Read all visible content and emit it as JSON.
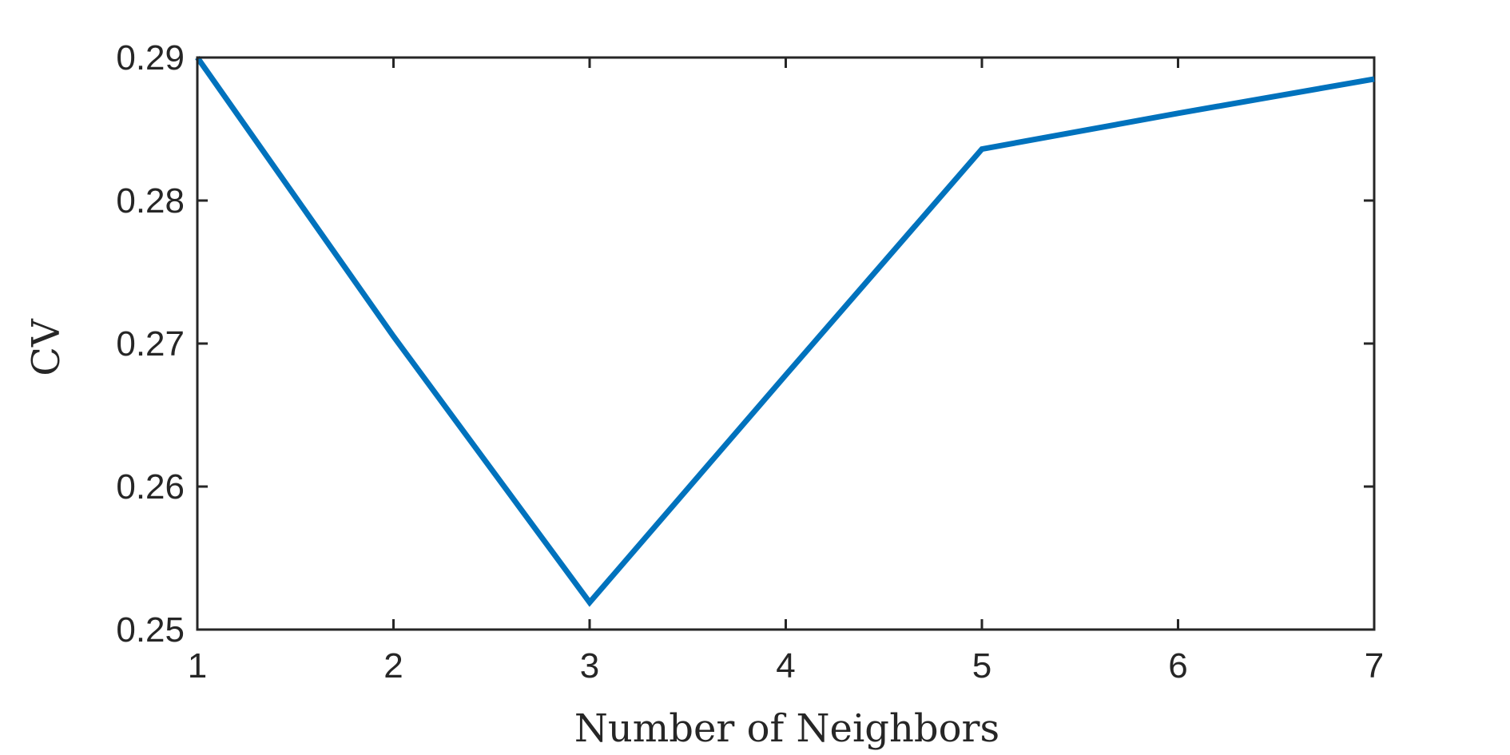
{
  "chart_data": {
    "type": "line",
    "title": "",
    "xlabel": "Number of Neighbors",
    "ylabel": "CV",
    "x": [
      1,
      2,
      3,
      4,
      5,
      6,
      7
    ],
    "series": [
      {
        "values": [
          0.29,
          0.2705,
          0.2519,
          0.2678,
          0.2836,
          0.2861,
          0.2885
        ],
        "color": "#0072BD"
      }
    ],
    "xlim": [
      1,
      7
    ],
    "ylim": [
      0.25,
      0.29
    ],
    "xticks": [
      "1",
      "2",
      "3",
      "4",
      "5",
      "6",
      "7"
    ],
    "yticks": [
      "0.25",
      "0.26",
      "0.27",
      "0.28",
      "0.29"
    ],
    "grid": false,
    "legend": "none",
    "box": true,
    "axis_color": "#262626"
  }
}
